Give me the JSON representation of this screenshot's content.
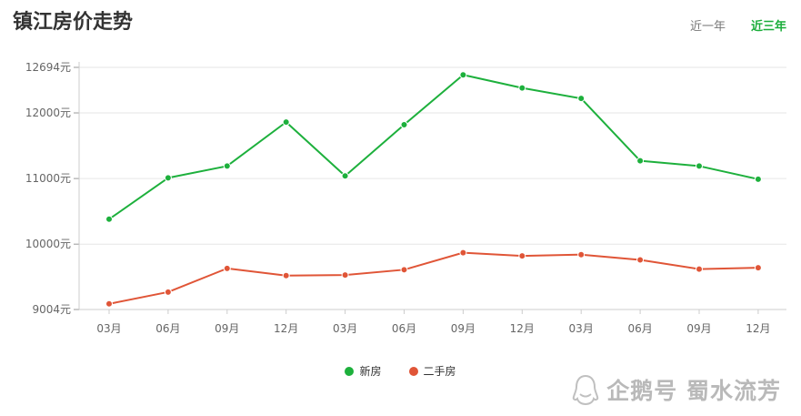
{
  "header": {
    "title": "镇江房价走势",
    "tabs": [
      {
        "label": "近一年",
        "active": false
      },
      {
        "label": "近三年",
        "active": true
      }
    ]
  },
  "chart_data": {
    "type": "line",
    "categories": [
      "03月",
      "06月",
      "09月",
      "12月",
      "03月",
      "06月",
      "09月",
      "12月",
      "03月",
      "06月",
      "09月",
      "12月"
    ],
    "yticks": [
      9004,
      10000,
      11000,
      12000,
      12694
    ],
    "ytick_labels": [
      "9004元",
      "10000元",
      "11000元",
      "12000元",
      "12694元"
    ],
    "ylim": [
      9004,
      12694
    ],
    "grid": true,
    "legend_position": "bottom-center",
    "series": [
      {
        "name": "新房",
        "color": "#1db03c",
        "values": [
          10380,
          11010,
          11190,
          11860,
          11040,
          11820,
          12580,
          12380,
          12220,
          11270,
          11190,
          10990
        ]
      },
      {
        "name": "二手房",
        "color": "#e05537",
        "values": [
          9090,
          9270,
          9630,
          9520,
          9530,
          9610,
          9870,
          9820,
          9840,
          9760,
          9620,
          9640
        ]
      }
    ]
  },
  "watermark": {
    "text": "企鹅号 蜀水流芳",
    "icon": "penguin-icon"
  }
}
